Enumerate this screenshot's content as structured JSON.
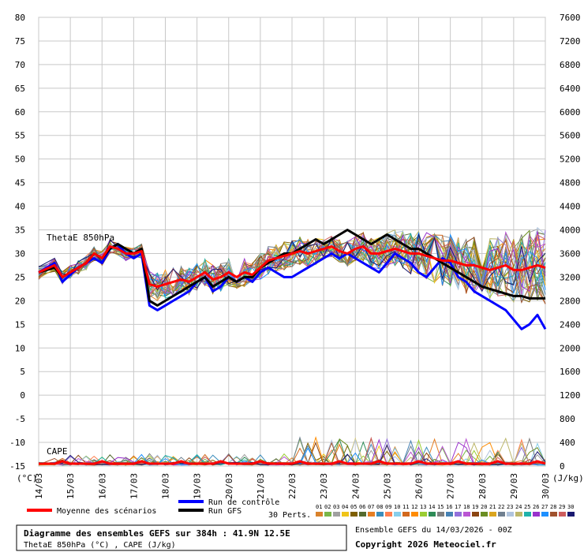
{
  "chart_data": {
    "type": "line",
    "title": "Diagramme des ensembles GEFS sur 384h : 41.9N 12.5E",
    "subtitle": "ThetaE 850hPa (°C) , CAPE (J/kg)",
    "left_axis": {
      "unit": "(°C)",
      "ylim": [
        -15,
        80
      ],
      "ticks": [
        80,
        75,
        70,
        65,
        60,
        55,
        50,
        45,
        40,
        35,
        30,
        25,
        20,
        15,
        10,
        5,
        0,
        -5,
        -10,
        -15
      ]
    },
    "right_axis": {
      "unit": "(J/kg)",
      "ylim": [
        0,
        7600
      ],
      "ticks": [
        7600,
        7200,
        6800,
        6400,
        6000,
        5600,
        5200,
        4800,
        4400,
        4000,
        3600,
        3200,
        2800,
        2400,
        2000,
        1600,
        1200,
        800,
        400,
        0
      ]
    },
    "x_ticks": [
      "14/03",
      "15/03",
      "16/03",
      "17/03",
      "18/03",
      "19/03",
      "20/03",
      "21/03",
      "22/03",
      "23/03",
      "24/03",
      "25/03",
      "26/03",
      "27/03",
      "28/03",
      "29/03",
      "30/03"
    ],
    "annotations": [
      "ThetaE 850hPa",
      "CAPE"
    ],
    "grid": true,
    "series": [
      {
        "name": "Moyenne des scénarios",
        "color": "#ff0000",
        "x_days": [
          0,
          0.5,
          0.75,
          1,
          1.25,
          1.5,
          1.75,
          2,
          2.25,
          2.5,
          2.75,
          3,
          3.25,
          3.5,
          3.75,
          4,
          4.25,
          4.5,
          4.75,
          5,
          5.25,
          5.5,
          5.75,
          6,
          6.25,
          6.5,
          6.75,
          7,
          7.25,
          7.5,
          7.75,
          8,
          8.25,
          8.5,
          8.75,
          9,
          9.25,
          9.5,
          9.75,
          10,
          10.25,
          10.5,
          10.75,
          11,
          11.25,
          11.5,
          11.75,
          12,
          12.25,
          12.5,
          12.75,
          13,
          13.25,
          13.5,
          13.75,
          14,
          14.25,
          14.5,
          14.75,
          15,
          15.25,
          15.5,
          15.75,
          16
        ],
        "values": [
          26,
          27.5,
          25,
          26,
          27,
          28,
          30,
          29,
          31.5,
          31,
          30,
          30,
          30.5,
          23.5,
          23,
          23.5,
          24,
          24.5,
          24,
          25,
          26,
          24.5,
          25,
          26,
          25,
          26,
          25.5,
          27,
          28.5,
          29,
          29.5,
          30,
          30.5,
          30,
          30.5,
          31,
          31.5,
          30.5,
          30,
          31,
          31.5,
          30,
          30,
          30.5,
          31,
          30.5,
          30,
          30,
          29.5,
          29,
          28.5,
          28.5,
          28,
          27.5,
          27.5,
          27,
          26.5,
          27,
          27.5,
          26.5,
          26.5,
          27,
          27.5,
          27
        ]
      },
      {
        "name": "Run de contrôle",
        "color": "#0000ff",
        "x_days": [
          0,
          0.5,
          0.75,
          1,
          1.25,
          1.5,
          1.75,
          2,
          2.25,
          2.5,
          2.75,
          3,
          3.25,
          3.5,
          3.75,
          4,
          4.25,
          4.5,
          4.75,
          5,
          5.25,
          5.5,
          5.75,
          6,
          6.25,
          6.5,
          6.75,
          7,
          7.25,
          7.5,
          7.75,
          8,
          8.25,
          8.5,
          8.75,
          9,
          9.25,
          9.5,
          9.75,
          10,
          10.25,
          10.5,
          10.75,
          11,
          11.25,
          11.5,
          11.75,
          12,
          12.25,
          12.5,
          12.75,
          13,
          13.25,
          13.5,
          13.75,
          14,
          14.25,
          14.5,
          14.75,
          15,
          15.25,
          15.5,
          15.75,
          16
        ],
        "values": [
          26,
          28,
          24,
          25.5,
          27,
          28,
          29,
          28,
          31,
          32,
          30,
          29,
          30,
          19,
          18,
          19,
          20,
          21,
          22,
          24,
          25,
          22,
          23,
          25,
          24,
          25,
          24,
          26,
          27,
          26,
          25,
          25,
          26,
          27,
          28,
          29,
          30,
          29,
          30,
          29,
          28,
          27,
          26,
          28,
          30,
          29,
          28,
          26,
          25,
          27,
          29,
          28,
          25,
          24,
          22,
          21,
          20,
          19,
          18,
          16,
          14,
          15,
          17,
          14
        ]
      },
      {
        "name": "Run GFS",
        "color": "#000000",
        "x_days": [
          0,
          0.5,
          0.75,
          1,
          1.25,
          1.5,
          1.75,
          2,
          2.25,
          2.5,
          2.75,
          3,
          3.25,
          3.5,
          3.75,
          4,
          4.25,
          4.5,
          4.75,
          5,
          5.25,
          5.5,
          5.75,
          6,
          6.25,
          6.5,
          6.75,
          7,
          7.25,
          7.5,
          7.75,
          8,
          8.25,
          8.5,
          8.75,
          9,
          9.25,
          9.5,
          9.75,
          10,
          10.25,
          10.5,
          10.75,
          11,
          11.25,
          11.5,
          11.75,
          12,
          12.25,
          12.5,
          12.75,
          13,
          13.25,
          13.5,
          13.75,
          14,
          14.25,
          14.5,
          14.75,
          15,
          15.25,
          15.5,
          15.75,
          16
        ],
        "values": [
          26,
          27,
          25,
          26,
          27,
          28,
          30,
          29,
          31,
          32,
          31,
          30,
          31,
          20,
          19,
          20,
          21,
          22,
          23,
          24,
          25,
          23,
          24,
          25,
          24,
          25,
          25,
          27,
          28,
          29,
          30,
          30,
          31,
          32,
          33,
          32,
          33,
          34,
          35,
          34,
          33,
          32,
          33,
          34,
          33,
          32,
          31,
          31,
          30,
          29,
          28,
          27,
          26,
          25,
          24,
          23,
          22.5,
          22,
          21.5,
          21,
          21,
          20.5,
          20.5,
          20.5
        ]
      }
    ],
    "members_count": "30 Perts.",
    "member_labels": [
      "01",
      "02",
      "03",
      "04",
      "05",
      "06",
      "07",
      "08",
      "09",
      "10",
      "11",
      "12",
      "13",
      "14",
      "15",
      "16",
      "17",
      "18",
      "19",
      "20",
      "21",
      "22",
      "23",
      "24",
      "25",
      "26",
      "27",
      "28",
      "29",
      "30"
    ],
    "member_colors": [
      "#d9822b",
      "#7ab648",
      "#a0a0a0",
      "#f0c419",
      "#7f6000",
      "#556b2f",
      "#e67e22",
      "#3c8dbc",
      "#ff7f50",
      "#87ceeb",
      "#d2691e",
      "#ff8c00",
      "#9acd32",
      "#2e8b57",
      "#808080",
      "#4682b4",
      "#9370db",
      "#ba55d3",
      "#8b4513",
      "#6b8e23",
      "#daa520",
      "#708090",
      "#b0c4de",
      "#bdb76b",
      "#20b2aa",
      "#9932cc",
      "#1e90ff",
      "#a0522d",
      "#cd5c5c",
      "#191970"
    ]
  },
  "legend": {
    "mean_label": "Moyenne des scénarios",
    "control_label": "Run de contrôle",
    "gfs_label": "Run GFS",
    "perts_label": "30 Perts."
  },
  "footer": {
    "box_line1": "Diagramme des ensembles GEFS sur 384h : 41.9N 12.5E",
    "box_line2": "ThetaE 850hPa (°C) , CAPE (J/kg)",
    "ensemble_info": "Ensemble GEFS du 14/03/2026 - 00Z",
    "copyright": "Copyright 2026 Meteociel.fr"
  }
}
